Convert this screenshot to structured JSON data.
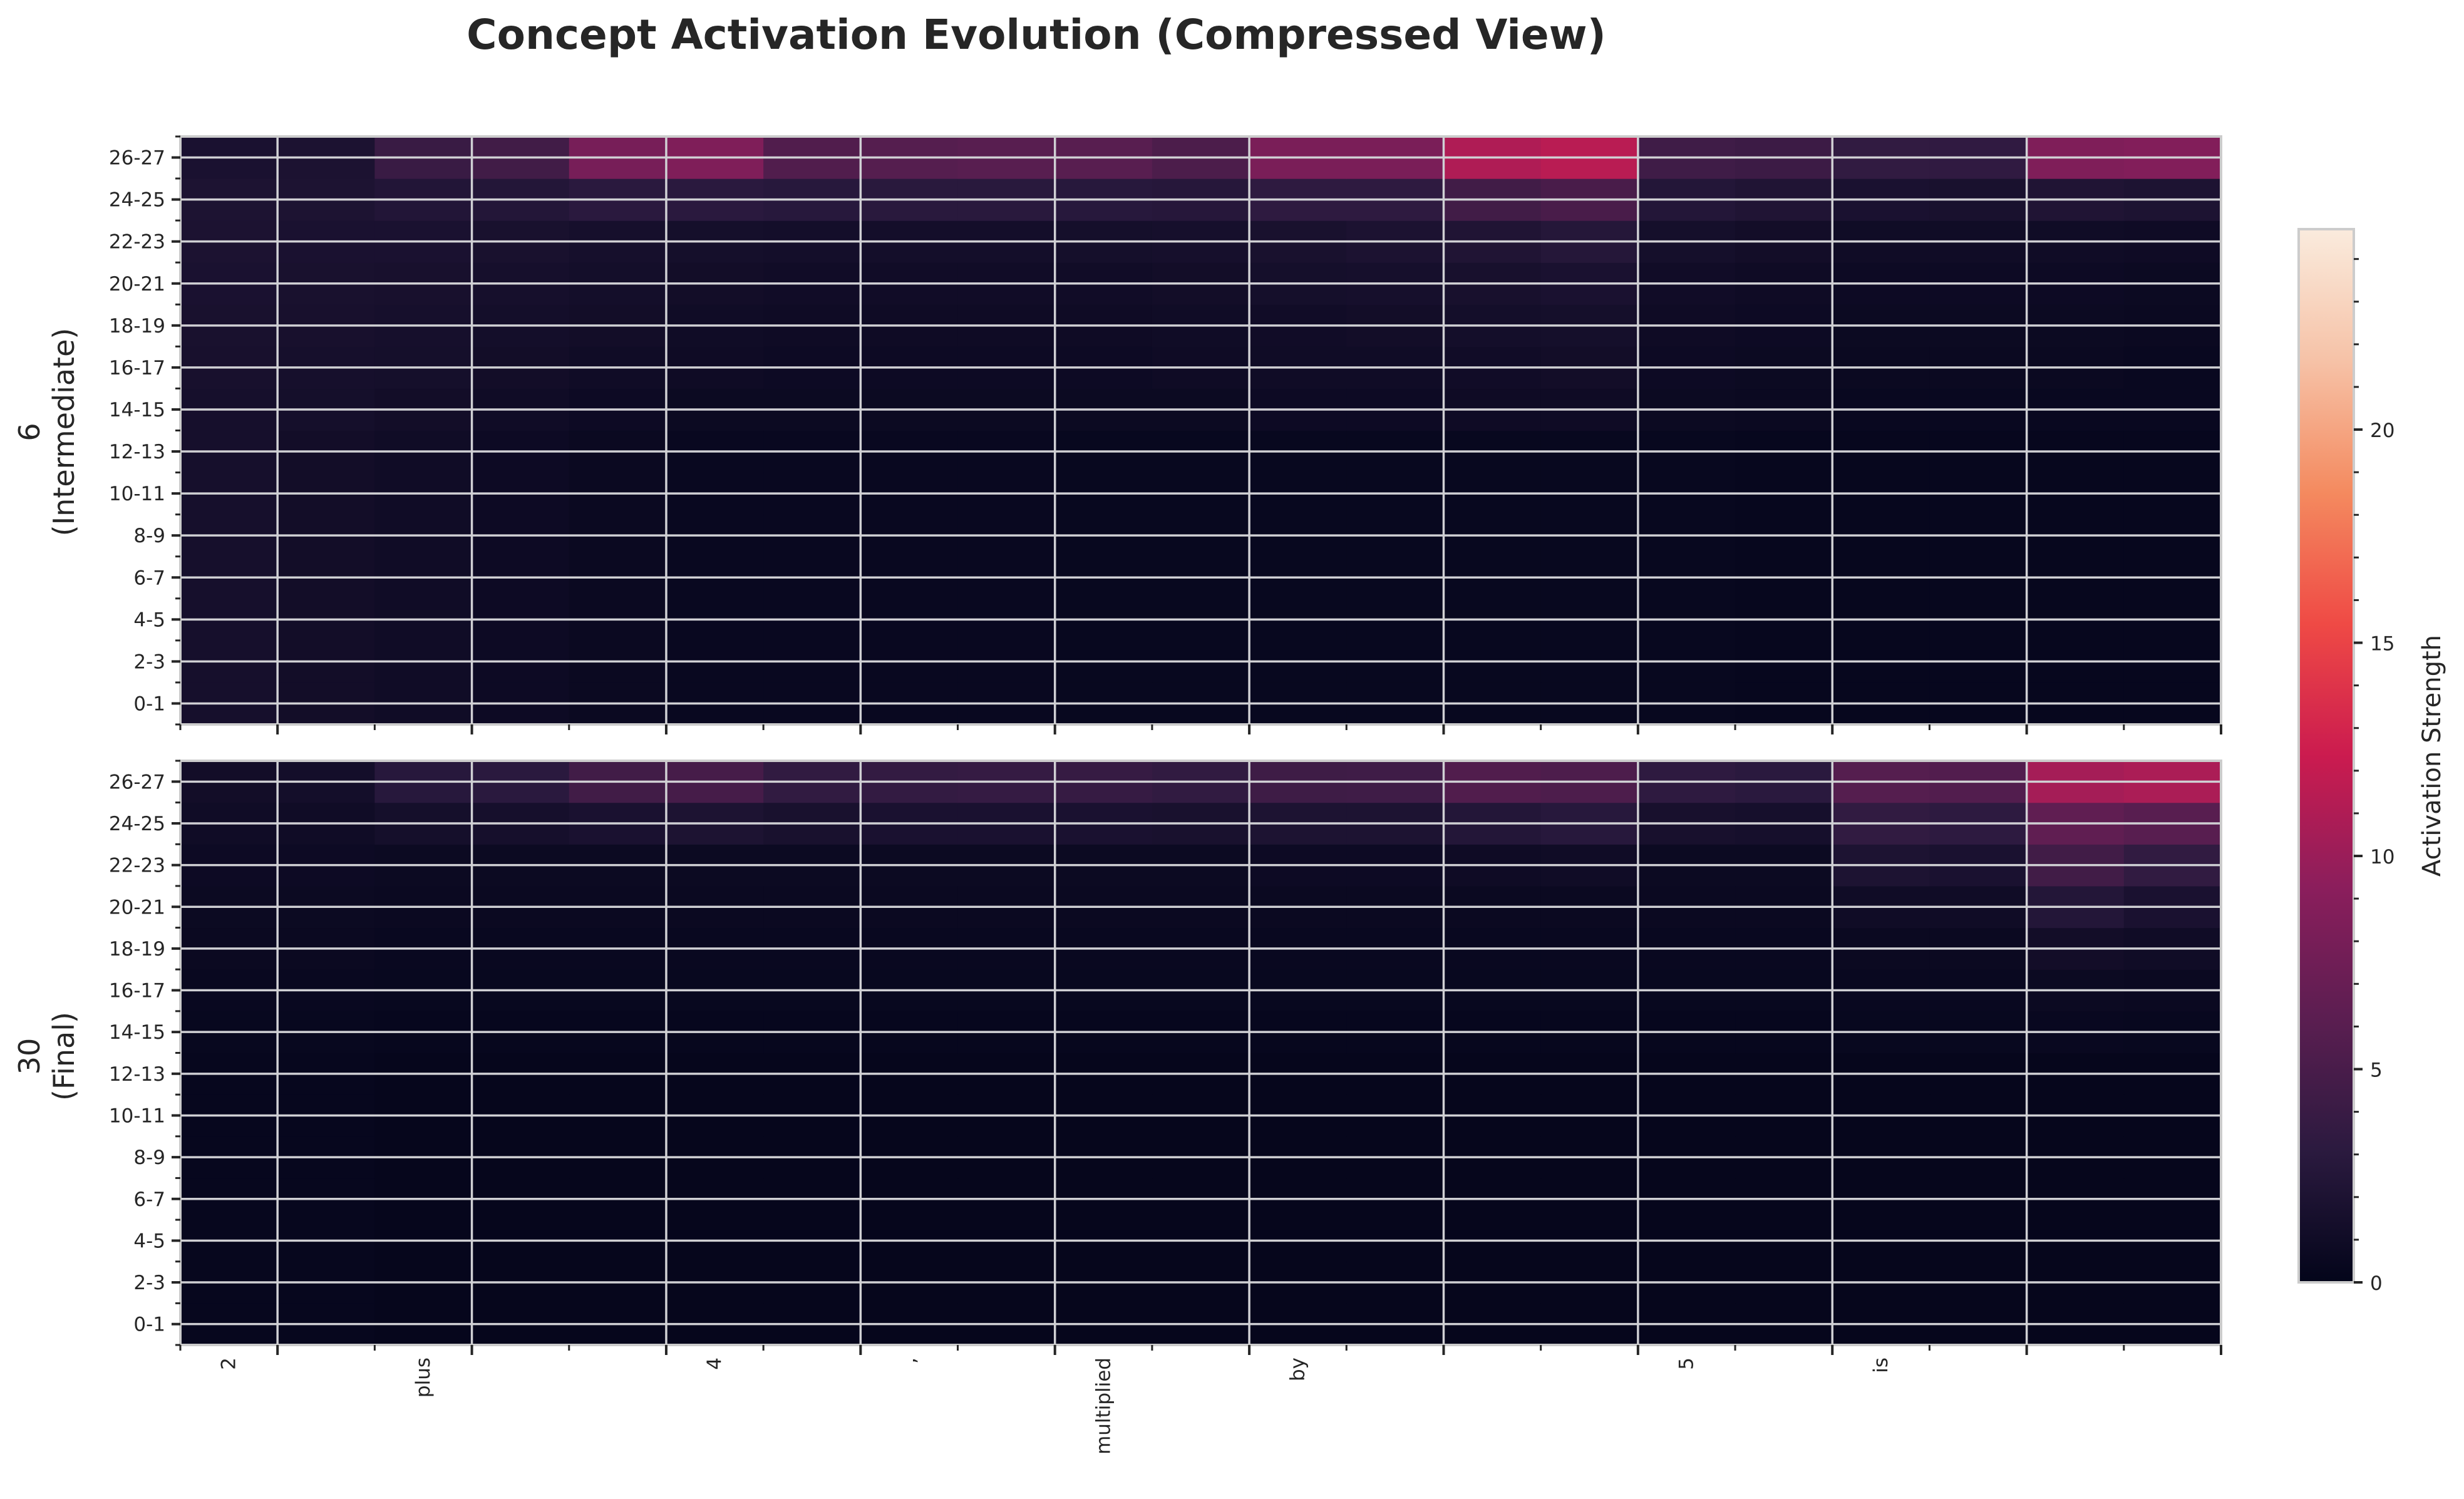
{
  "chart_data": {
    "type": "heatmap",
    "title": "Concept Activation Evolution (Compressed View)",
    "x_tokens": [
      "2",
      "",
      "plus",
      "",
      "",
      "4",
      "",
      ",",
      "",
      "multiplied",
      "",
      "by",
      "",
      "",
      "",
      "5",
      "",
      "is",
      "",
      "",
      ""
    ],
    "y_labels": [
      "0-1",
      "2-3",
      "4-5",
      "6-7",
      "8-9",
      "10-11",
      "12-13",
      "14-15",
      "16-17",
      "18-19",
      "20-21",
      "22-23",
      "24-25",
      "26-27"
    ],
    "colorbar": {
      "label": "Activation Strength",
      "min": 0,
      "max": 24.7,
      "ticks": [
        0,
        5,
        10,
        15,
        20
      ],
      "colormap": "rocket",
      "colors": [
        "#03051a",
        "#2b1a3f",
        "#5b1e51",
        "#8b1e5c",
        "#cb1b4f",
        "#ef4a45",
        "#f48a5f",
        "#f6c2a7",
        "#faebdd"
      ]
    },
    "panels": [
      {
        "label_line1": "6",
        "label_line2": "(Intermediate)",
        "values": [
          [
            1.5,
            1.2,
            1,
            0.8,
            0.6,
            0.5,
            0.5,
            0.5,
            0.5,
            0.4,
            0.4,
            0.4,
            0.4,
            0.4,
            0.4,
            0.4,
            0.3,
            0.3,
            0.3,
            0.3,
            0.3
          ],
          [
            1.5,
            1.2,
            1,
            0.8,
            0.6,
            0.5,
            0.5,
            0.5,
            0.5,
            0.4,
            0.4,
            0.4,
            0.4,
            0.4,
            0.4,
            0.4,
            0.3,
            0.3,
            0.3,
            0.3,
            0.3
          ],
          [
            1.5,
            1.2,
            1,
            0.8,
            0.6,
            0.5,
            0.5,
            0.5,
            0.5,
            0.4,
            0.4,
            0.4,
            0.4,
            0.4,
            0.4,
            0.4,
            0.3,
            0.3,
            0.3,
            0.3,
            0.3
          ],
          [
            1.5,
            1.2,
            1,
            0.8,
            0.6,
            0.5,
            0.5,
            0.5,
            0.5,
            0.4,
            0.4,
            0.4,
            0.4,
            0.4,
            0.4,
            0.4,
            0.3,
            0.3,
            0.3,
            0.3,
            0.3
          ],
          [
            1.5,
            1.2,
            1,
            0.8,
            0.6,
            0.5,
            0.5,
            0.5,
            0.5,
            0.4,
            0.4,
            0.4,
            0.4,
            0.4,
            0.4,
            0.4,
            0.3,
            0.3,
            0.3,
            0.3,
            0.3
          ],
          [
            1.5,
            1.2,
            1,
            0.8,
            0.6,
            0.5,
            0.5,
            0.5,
            0.5,
            0.4,
            0.4,
            0.4,
            0.4,
            0.4,
            0.4,
            0.4,
            0.3,
            0.3,
            0.3,
            0.3,
            0.3
          ],
          [
            1.5,
            1.2,
            1,
            0.8,
            0.6,
            0.5,
            0.5,
            0.5,
            0.5,
            0.4,
            0.4,
            0.4,
            0.4,
            0.4,
            0.4,
            0.4,
            0.3,
            0.3,
            0.3,
            0.3,
            0.3
          ],
          [
            1.5,
            1.4,
            1.2,
            1,
            0.8,
            0.7,
            0.7,
            0.7,
            0.7,
            0.7,
            0.7,
            0.8,
            0.8,
            0.9,
            0.9,
            0.7,
            0.6,
            0.5,
            0.5,
            0.5,
            0.5
          ],
          [
            1.6,
            1.5,
            1.4,
            1.2,
            1,
            0.9,
            0.8,
            0.8,
            0.8,
            0.8,
            0.9,
            1,
            1,
            1.1,
            1.2,
            0.8,
            0.7,
            0.6,
            0.6,
            0.6,
            0.5
          ],
          [
            1.7,
            1.6,
            1.5,
            1.3,
            1.2,
            1,
            0.9,
            0.9,
            0.9,
            0.9,
            1,
            1.1,
            1.2,
            1.3,
            1.4,
            0.9,
            0.8,
            0.7,
            0.7,
            0.7,
            0.6
          ],
          [
            1.8,
            1.7,
            1.6,
            1.5,
            1.3,
            1.2,
            1.1,
            1.1,
            1.1,
            1.1,
            1.2,
            1.4,
            1.5,
            1.6,
            1.8,
            1.1,
            0.9,
            0.8,
            0.8,
            0.8,
            0.7
          ],
          [
            1.9,
            1.8,
            1.8,
            1.7,
            1.5,
            1.4,
            1.3,
            1.3,
            1.3,
            1.4,
            1.5,
            1.7,
            1.9,
            2.2,
            2.6,
            1.4,
            1.2,
            1,
            1,
            1,
            0.9
          ],
          [
            2,
            2,
            2.4,
            2.5,
            3,
            3,
            2.8,
            2.9,
            2.9,
            2.8,
            2.7,
            3.3,
            3.3,
            4.5,
            5,
            2.5,
            2.2,
            1.8,
            1.7,
            2.2,
            2
          ],
          [
            1.8,
            1.9,
            4,
            4.5,
            8,
            8.5,
            5.5,
            5.8,
            6,
            6,
            5.2,
            8.2,
            8.2,
            11,
            11.5,
            4.4,
            4.2,
            3.5,
            3.4,
            8.5,
            8.7
          ]
        ]
      },
      {
        "label_line1": "30",
        "label_line2": "(Final)",
        "values": [
          [
            0.3,
            0.3,
            0.2,
            0.2,
            0.2,
            0.2,
            0.2,
            0.2,
            0.2,
            0.2,
            0.2,
            0.2,
            0.2,
            0.2,
            0.2,
            0.2,
            0.2,
            0.2,
            0.2,
            0.2,
            0.2
          ],
          [
            0.3,
            0.3,
            0.2,
            0.2,
            0.2,
            0.2,
            0.2,
            0.2,
            0.2,
            0.2,
            0.2,
            0.2,
            0.2,
            0.2,
            0.2,
            0.2,
            0.2,
            0.2,
            0.2,
            0.2,
            0.2
          ],
          [
            0.3,
            0.3,
            0.2,
            0.2,
            0.2,
            0.2,
            0.2,
            0.2,
            0.2,
            0.2,
            0.2,
            0.2,
            0.2,
            0.2,
            0.2,
            0.2,
            0.2,
            0.2,
            0.2,
            0.2,
            0.2
          ],
          [
            0.3,
            0.3,
            0.2,
            0.2,
            0.2,
            0.2,
            0.2,
            0.2,
            0.2,
            0.2,
            0.2,
            0.2,
            0.2,
            0.2,
            0.2,
            0.2,
            0.2,
            0.2,
            0.2,
            0.2,
            0.2
          ],
          [
            0.3,
            0.3,
            0.2,
            0.2,
            0.2,
            0.2,
            0.2,
            0.2,
            0.2,
            0.2,
            0.2,
            0.2,
            0.2,
            0.2,
            0.2,
            0.2,
            0.2,
            0.2,
            0.2,
            0.2,
            0.2
          ],
          [
            0.3,
            0.3,
            0.2,
            0.2,
            0.2,
            0.2,
            0.2,
            0.2,
            0.2,
            0.2,
            0.2,
            0.2,
            0.2,
            0.2,
            0.2,
            0.2,
            0.2,
            0.2,
            0.2,
            0.2,
            0.2
          ],
          [
            0.3,
            0.3,
            0.2,
            0.2,
            0.2,
            0.2,
            0.2,
            0.2,
            0.2,
            0.2,
            0.2,
            0.2,
            0.2,
            0.2,
            0.2,
            0.2,
            0.2,
            0.2,
            0.2,
            0.2,
            0.2
          ],
          [
            0.4,
            0.4,
            0.3,
            0.3,
            0.3,
            0.3,
            0.3,
            0.3,
            0.3,
            0.3,
            0.3,
            0.3,
            0.3,
            0.3,
            0.3,
            0.3,
            0.3,
            0.4,
            0.4,
            0.5,
            0.4
          ],
          [
            0.5,
            0.5,
            0.4,
            0.4,
            0.4,
            0.4,
            0.4,
            0.4,
            0.4,
            0.4,
            0.4,
            0.4,
            0.4,
            0.4,
            0.4,
            0.4,
            0.4,
            0.5,
            0.5,
            0.7,
            0.6
          ],
          [
            0.6,
            0.6,
            0.5,
            0.5,
            0.5,
            0.5,
            0.5,
            0.5,
            0.5,
            0.5,
            0.5,
            0.5,
            0.5,
            0.5,
            0.5,
            0.5,
            0.5,
            0.6,
            0.6,
            1.2,
            1
          ],
          [
            0.7,
            0.7,
            0.6,
            0.6,
            0.6,
            0.6,
            0.6,
            0.6,
            0.6,
            0.6,
            0.6,
            0.6,
            0.6,
            0.6,
            0.6,
            0.6,
            0.6,
            1,
            1,
            2.5,
            1.8
          ],
          [
            0.8,
            0.8,
            0.7,
            0.7,
            0.7,
            0.7,
            0.7,
            0.7,
            0.7,
            0.7,
            0.7,
            0.8,
            0.8,
            0.9,
            1,
            0.7,
            0.7,
            2,
            1.8,
            4.5,
            3.5
          ],
          [
            1,
            1,
            1.4,
            1.5,
            1.8,
            2,
            1.7,
            1.8,
            1.8,
            1.8,
            1.7,
            2,
            2,
            2.5,
            2.8,
            1.6,
            1.5,
            3.5,
            3.2,
            6.5,
            6
          ],
          [
            1.2,
            1.3,
            2.8,
            3,
            4.5,
            4.8,
            3.5,
            3.6,
            3.7,
            3.8,
            3.5,
            4.3,
            4.4,
            5.5,
            5.3,
            3.3,
            3,
            5.8,
            5.6,
            10.5,
            10.8
          ]
        ]
      }
    ]
  }
}
